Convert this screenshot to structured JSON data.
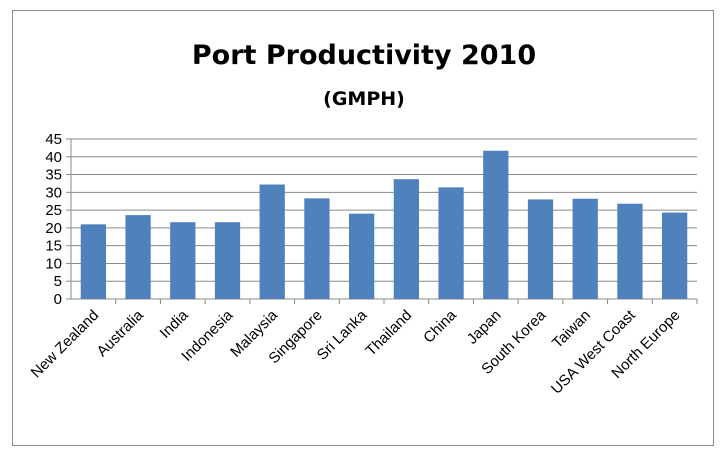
{
  "chart_data": {
    "type": "bar",
    "title": "Port Productivity 2010",
    "subtitle": "(GMPH)",
    "xlabel": "",
    "ylabel": "",
    "categories": [
      "New Zealand",
      "Australia",
      "India",
      "Indonesia",
      "Malaysia",
      "Singapore",
      "Sri Lanka",
      "Thailand",
      "China",
      "Japan",
      "South Korea",
      "Taiwan",
      "USA West Coast",
      "North Europe"
    ],
    "values": [
      21,
      23.6,
      21.6,
      21.6,
      32.2,
      28.3,
      24,
      33.7,
      31.4,
      41.7,
      28,
      28.2,
      26.8,
      24.3
    ],
    "ylim": [
      0,
      45
    ],
    "yticks": [
      0,
      5,
      10,
      15,
      20,
      25,
      30,
      35,
      40,
      45
    ],
    "grid": true,
    "legend": "none",
    "bar_color": "#4f81bd"
  }
}
